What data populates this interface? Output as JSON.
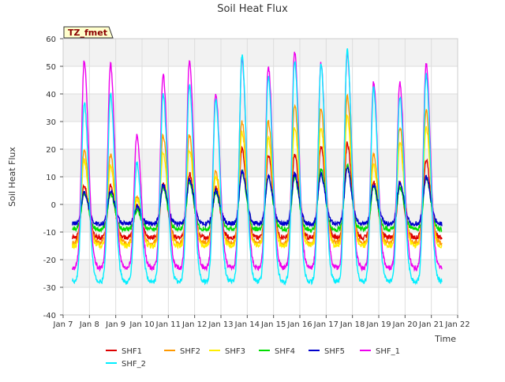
{
  "chart_data": {
    "type": "line",
    "title": "Soil Heat Flux",
    "xlabel": "Time",
    "ylabel": "Soil Heat Flux",
    "annotation": "TZ_fmet",
    "xlim": [
      7,
      22
    ],
    "ylim": [
      -40,
      60
    ],
    "yticks": [
      -40,
      -30,
      -20,
      -10,
      0,
      10,
      20,
      30,
      40,
      50,
      60
    ],
    "xticks": [
      {
        "value": 7,
        "label": "Jan 7"
      },
      {
        "value": 8,
        "label": "Jan 8"
      },
      {
        "value": 9,
        "label": "Jan 9"
      },
      {
        "value": 10,
        "label": "Jan 10"
      },
      {
        "value": 11,
        "label": "Jan 11"
      },
      {
        "value": 12,
        "label": "Jan 12"
      },
      {
        "value": 13,
        "label": "Jan 13"
      },
      {
        "value": 14,
        "label": "Jan 14"
      },
      {
        "value": 15,
        "label": "Jan 15"
      },
      {
        "value": 16,
        "label": "Jan 16"
      },
      {
        "value": 17,
        "label": "Jan 17"
      },
      {
        "value": 18,
        "label": "Jan 18"
      },
      {
        "value": 19,
        "label": "Jan 19"
      },
      {
        "value": 20,
        "label": "Jan 20"
      },
      {
        "value": 21,
        "label": "Jan 21"
      },
      {
        "value": 22,
        "label": "Jan 22"
      }
    ],
    "days": [
      8,
      9,
      10,
      11,
      12,
      13,
      14,
      15,
      16,
      17,
      18,
      19,
      20,
      21
    ],
    "series_start": 7.35,
    "series_end": 21.4,
    "peak_time_offset": -0.2,
    "grid": true,
    "legend_position": "bottom",
    "series": [
      {
        "name": "SHF1",
        "color": "#dd0000",
        "night": -12,
        "peaks": [
          7,
          7,
          0,
          8,
          11,
          6,
          20,
          18,
          18,
          21,
          22,
          8,
          8,
          16
        ]
      },
      {
        "name": "SHF2",
        "color": "#ff9900",
        "night": -14,
        "peaks": [
          20,
          18,
          3,
          25,
          25,
          12,
          30,
          30,
          36,
          35,
          39,
          18,
          28,
          34
        ]
      },
      {
        "name": "SHF3",
        "color": "#ffee00",
        "night": -15,
        "peaks": [
          16,
          14,
          2,
          19,
          20,
          10,
          26,
          24,
          28,
          28,
          32,
          14,
          22,
          28
        ]
      },
      {
        "name": "SHF4",
        "color": "#00dd00",
        "night": -9,
        "peaks": [
          4,
          4,
          -2,
          6,
          8,
          4,
          12,
          10,
          10,
          13,
          14,
          6,
          6,
          10
        ]
      },
      {
        "name": "SHF5",
        "color": "#0000cc",
        "night": -7,
        "peaks": [
          4,
          5,
          -1,
          7,
          9,
          5,
          12,
          10,
          11,
          11,
          13,
          7,
          8,
          10
        ]
      },
      {
        "name": "SHF_1",
        "color": "#ee00ee",
        "night": -23,
        "peaks": [
          52,
          51,
          25,
          47,
          52,
          40,
          52,
          50,
          55,
          51,
          55,
          44,
          44,
          51
        ]
      },
      {
        "name": "SHF_2",
        "color": "#00eeff",
        "night": -28,
        "peaks": [
          37,
          40,
          15,
          40,
          43,
          38,
          54,
          46,
          52,
          51,
          56,
          42,
          39,
          47
        ]
      }
    ]
  }
}
